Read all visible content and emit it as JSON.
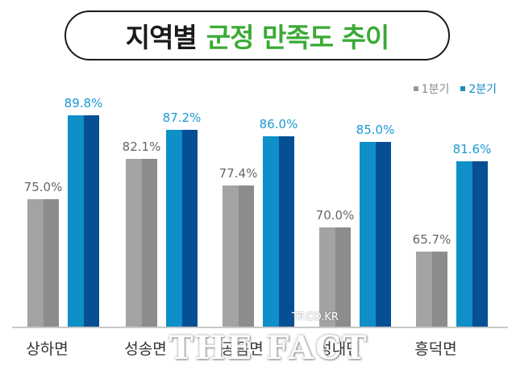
{
  "title": {
    "dark": "지역별",
    "green": "군정 만족도 추이"
  },
  "legend": [
    {
      "label": "1분기",
      "color": "#9a9a9a"
    },
    {
      "label": "2분기",
      "color": "#1a8bc4"
    }
  ],
  "watermark": {
    "main": "THE FACT",
    "sub": "TF.CO.KR"
  },
  "chart_data": {
    "type": "bar",
    "title": "지역별 군정 만족도 추이",
    "xlabel": "",
    "ylabel": "",
    "categories": [
      "상하면",
      "성송면",
      "공음면",
      "성내면",
      "흥덕면"
    ],
    "series": [
      {
        "name": "1분기",
        "values": [
          75.0,
          82.1,
          77.4,
          70.0,
          65.7
        ],
        "labels": [
          "75.0%",
          "82.1%",
          "77.4%",
          "70.0%",
          "65.7%"
        ]
      },
      {
        "name": "2분기",
        "values": [
          89.8,
          87.2,
          86.0,
          85.0,
          81.6
        ],
        "labels": [
          "89.8%",
          "87.2%",
          "86.0%",
          "85.0%",
          "81.6%"
        ]
      }
    ],
    "grid": false,
    "legend_position": "top-right",
    "colors": {
      "q1_light": "#a3a3a3",
      "q1_dark": "#8c8c8c",
      "q2_light": "#0e8fc7",
      "q2_dark": "#064f94",
      "q2_label": "#1a9ad4",
      "q1_label": "#666666"
    }
  }
}
